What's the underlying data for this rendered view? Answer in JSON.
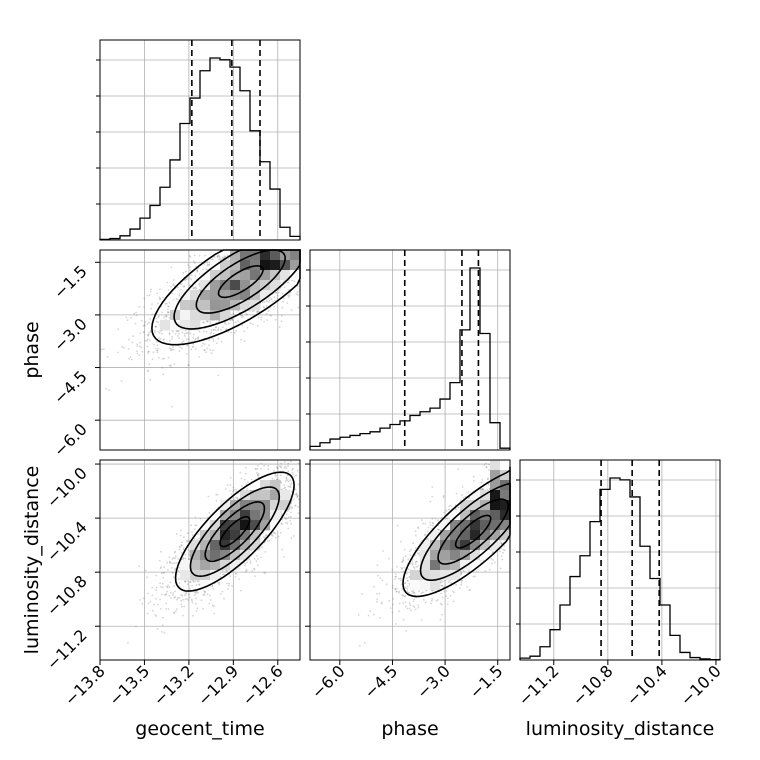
{
  "chart_data": {
    "type": "corner",
    "parameters": [
      "geocent_time",
      "phase",
      "luminosity_distance"
    ],
    "ranges": {
      "geocent_time": [
        -13.8,
        -12.45
      ],
      "phase": [
        -6.85,
        -1.15
      ],
      "luminosity_distance": [
        -11.45,
        -9.97
      ]
    },
    "ticks": {
      "geocent_time": {
        "values": [
          -13.8,
          -13.5,
          -13.2,
          -12.9,
          -12.6
        ],
        "labels": [
          "−13.8",
          "−13.5",
          "−13.2",
          "−12.9",
          "−12.6"
        ]
      },
      "phase": {
        "values": [
          -6.0,
          -4.5,
          -3.0,
          -1.5
        ],
        "labels": [
          "−6.0",
          "−4.5",
          "−3.0",
          "−1.5"
        ]
      },
      "luminosity_distance": {
        "values": [
          -11.2,
          -10.8,
          -10.4,
          -10.0
        ],
        "labels": [
          "−11.2",
          "−10.8",
          "−10.4",
          "−10.0"
        ]
      }
    },
    "grid": true,
    "histograms": {
      "geocent_time": {
        "edges": [
          -13.8,
          -13.7325,
          -13.665,
          -13.5975,
          -13.53,
          -13.4625,
          -13.395,
          -13.3275,
          -13.26,
          -13.1925,
          -13.125,
          -13.0575,
          -12.99,
          -12.9225,
          -12.855,
          -12.7875,
          -12.72,
          -12.6525,
          -12.585,
          -12.5175,
          -12.45
        ],
        "counts": [
          0.3,
          0.8,
          2.3,
          6,
          12,
          19,
          29,
          44,
          64,
          78,
          93,
          100,
          99,
          95,
          82,
          60,
          43,
          28,
          7,
          2
        ],
        "quantiles": [
          -13.18,
          -12.91,
          -12.72
        ]
      },
      "phase": {
        "edges": [
          -6.85,
          -6.565,
          -6.28,
          -5.995,
          -5.71,
          -5.425,
          -5.14,
          -4.855,
          -4.57,
          -4.285,
          -4.0,
          -3.715,
          -3.43,
          -3.145,
          -2.86,
          -2.575,
          -2.29,
          -2.005,
          -1.72,
          -1.435,
          -1.15
        ],
        "counts": [
          2,
          4,
          6,
          7,
          8,
          9,
          10,
          12,
          14,
          16,
          19,
          21,
          23,
          28,
          37,
          66,
          100,
          64,
          15,
          1
        ],
        "quantiles": [
          -4.15,
          -2.52,
          -2.05
        ]
      },
      "luminosity_distance": {
        "edges": [
          -11.45,
          -11.376,
          -11.302,
          -11.228,
          -11.154,
          -11.08,
          -11.006,
          -10.932,
          -10.858,
          -10.784,
          -10.71,
          -10.636,
          -10.562,
          -10.488,
          -10.414,
          -10.34,
          -10.266,
          -10.192,
          -10.118,
          -10.044,
          -9.97
        ],
        "counts": [
          1,
          2,
          7,
          16,
          29,
          44,
          55,
          73,
          90,
          96,
          95,
          86,
          60,
          43,
          29,
          13,
          4,
          1.3,
          0.6,
          0.2
        ],
        "quantiles": [
          -10.85,
          -10.62,
          -10.42
        ]
      }
    },
    "joint": [
      {
        "x": "geocent_time",
        "y": "phase",
        "center": [
          -12.85,
          -2.05
        ],
        "sd": [
          0.3,
          0.9
        ],
        "correlation": 0.74
      },
      {
        "x": "geocent_time",
        "y": "luminosity_distance",
        "center": [
          -12.89,
          -10.5
        ],
        "sd": [
          0.2,
          0.22
        ],
        "correlation": 0.78
      },
      {
        "x": "phase",
        "y": "luminosity_distance",
        "center": [
          -2.2,
          -10.5
        ],
        "sd": [
          1.0,
          0.24
        ],
        "correlation": 0.8
      }
    ],
    "samples_per_panel": 2800
  }
}
